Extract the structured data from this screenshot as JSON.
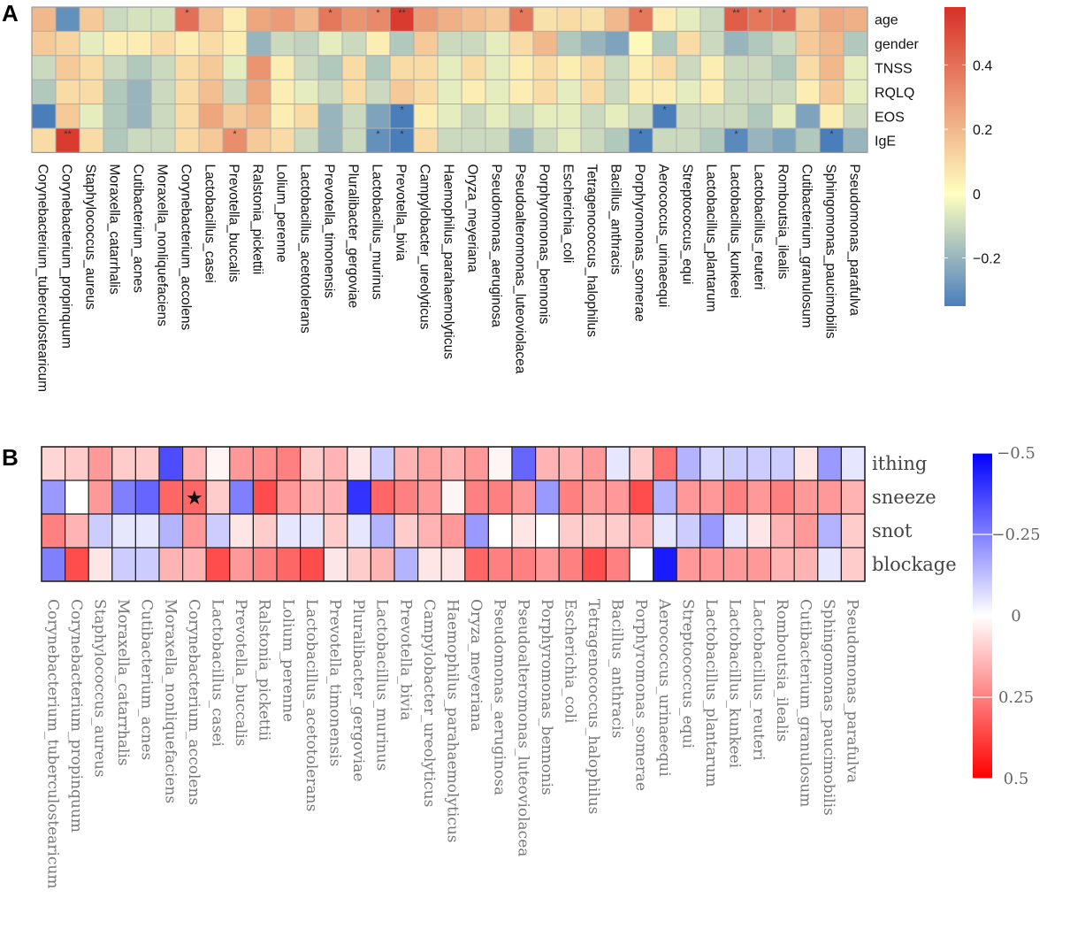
{
  "panel_labels": {
    "a": "A",
    "b": "B"
  },
  "chart_data": [
    {
      "type": "heatmap",
      "panel": "A",
      "title": "",
      "rows": [
        "age",
        "gender",
        "TNSS",
        "RQLQ",
        "EOS",
        "IgE"
      ],
      "columns": [
        "Corynebacterium_tuberculostearicum",
        "Corynebacterium_propinquum",
        "Staphylococcus_aureus",
        "Moraxella_catarrhalis",
        "Cutibacterium_acnes",
        "Moraxella_nonliquefaciens",
        "Corynebacterium_accolens",
        "Lactobacillus_casei",
        "Prevotella_buccalis",
        "Ralstonia_pickettii",
        "Lolium_perenne",
        "Lactobacillus_acetotolerans",
        "Prevotella_timonensis",
        "Pluralibacter_gergoviae",
        "Lactobacillus_murinus",
        "Prevotella_bivia",
        "Campylobacter_ureolyticus",
        "Haemophilus_parahaemolyticus",
        "Oryza_meyeriana",
        "Pseudomonas_aeruginosa",
        "Pseudoalteromonas_luteoviolacea",
        "Porphyromonas_bennonis",
        "Escherichia_coli",
        "Tetragenococcus_halophilus",
        "Bacillus_anthracis",
        "Porphyromonas_somerae",
        "Aerococcus_urinaeequi",
        "Streptococcus_equi",
        "Lactobacillus_plantarum",
        "Lactobacillus_kunkeei",
        "Lactobacillus_reuteri",
        "Romboutsia_ilealis",
        "Cutibacterium_granulosum",
        "Sphingomonas_paucimobilis",
        "Pseudomonas_parafulva"
      ],
      "values": [
        [
          0.2,
          -0.3,
          0.15,
          -0.1,
          -0.08,
          -0.08,
          0.4,
          0.18,
          0.05,
          0.25,
          0.28,
          0.2,
          0.38,
          0.3,
          0.33,
          0.55,
          0.28,
          0.22,
          0.18,
          0.15,
          0.38,
          0.08,
          0.1,
          0.08,
          0.2,
          0.38,
          0.05,
          -0.05,
          -0.1,
          0.45,
          0.38,
          0.4,
          0.15,
          0.24,
          0.22
        ],
        [
          0.15,
          0.12,
          -0.05,
          0.05,
          0.05,
          0.1,
          0.05,
          0.1,
          0.05,
          -0.2,
          -0.1,
          -0.12,
          -0.05,
          -0.1,
          0.05,
          -0.15,
          0.15,
          -0.1,
          -0.1,
          -0.05,
          0.1,
          0.2,
          -0.15,
          -0.2,
          -0.25,
          0.02,
          -0.15,
          0.1,
          -0.1,
          -0.2,
          -0.15,
          -0.1,
          0.15,
          0.2,
          -0.15
        ],
        [
          -0.1,
          0.15,
          0.1,
          -0.1,
          -0.15,
          -0.1,
          0.1,
          0.15,
          -0.05,
          0.3,
          0.05,
          -0.1,
          -0.15,
          0.1,
          -0.15,
          0.1,
          0.1,
          -0.05,
          0.1,
          -0.05,
          0.05,
          0.1,
          0.05,
          0.1,
          -0.1,
          0.05,
          0.1,
          -0.1,
          0.05,
          -0.1,
          -0.1,
          -0.15,
          0.1,
          0.2,
          -0.05
        ],
        [
          -0.15,
          0.1,
          0.1,
          -0.15,
          -0.2,
          -0.1,
          0.1,
          0.18,
          -0.1,
          0.25,
          0.05,
          -0.05,
          -0.1,
          0.1,
          -0.1,
          0.15,
          0.1,
          -0.05,
          0.05,
          -0.05,
          0.05,
          0.1,
          -0.05,
          0.1,
          -0.1,
          0.05,
          0.05,
          -0.05,
          0.05,
          -0.1,
          -0.1,
          -0.1,
          0.05,
          0.15,
          -0.05
        ],
        [
          -0.35,
          0.15,
          -0.05,
          -0.15,
          -0.2,
          -0.1,
          0.1,
          0.25,
          0.15,
          0.2,
          0.05,
          0.1,
          -0.2,
          -0.1,
          -0.25,
          -0.38,
          0.05,
          -0.05,
          -0.1,
          -0.05,
          -0.1,
          -0.05,
          -0.05,
          -0.1,
          -0.05,
          -0.1,
          -0.38,
          -0.1,
          -0.1,
          -0.1,
          -0.15,
          -0.05,
          -0.25,
          0.05,
          -0.1
        ],
        [
          0.1,
          0.55,
          0.1,
          -0.15,
          -0.1,
          -0.1,
          0.1,
          0.15,
          0.32,
          0.15,
          0.1,
          -0.1,
          -0.2,
          -0.1,
          -0.3,
          -0.35,
          0.1,
          -0.1,
          -0.1,
          -0.1,
          -0.2,
          -0.1,
          -0.05,
          -0.1,
          -0.15,
          -0.35,
          -0.1,
          -0.1,
          -0.15,
          -0.32,
          -0.2,
          -0.25,
          -0.15,
          -0.35,
          -0.2
        ]
      ],
      "significance": [
        [
          "",
          "",
          "",
          "",
          "",
          "",
          "*",
          "",
          "",
          "",
          "",
          "",
          "*",
          "",
          "*",
          "**",
          "",
          "",
          "",
          "",
          "*",
          "",
          "",
          "",
          "",
          "*",
          "",
          "",
          "",
          "**",
          "*",
          "*",
          "",
          "",
          ""
        ],
        [
          "",
          "",
          "",
          "",
          "",
          "",
          "",
          "",
          "",
          "",
          "",
          "",
          "",
          "",
          "",
          "",
          "",
          "",
          "",
          "",
          "",
          "",
          "",
          "",
          "",
          "",
          "",
          "",
          "",
          "",
          "",
          "",
          "",
          "",
          ""
        ],
        [
          "",
          "",
          "",
          "",
          "",
          "",
          "",
          "",
          "",
          "",
          "",
          "",
          "",
          "",
          "",
          "",
          "",
          "",
          "",
          "",
          "",
          "",
          "",
          "",
          "",
          "",
          "",
          "",
          "",
          "",
          "",
          "",
          "",
          "",
          ""
        ],
        [
          "",
          "",
          "",
          "",
          "",
          "",
          "",
          "",
          "",
          "",
          "",
          "",
          "",
          "",
          "",
          "",
          "",
          "",
          "",
          "",
          "",
          "",
          "",
          "",
          "",
          "",
          "",
          "",
          "",
          "",
          "",
          "",
          "",
          "",
          ""
        ],
        [
          "",
          "",
          "",
          "",
          "",
          "",
          "",
          "",
          "",
          "",
          "",
          "",
          "",
          "",
          "",
          "*",
          "",
          "",
          "",
          "",
          "",
          "",
          "",
          "",
          "",
          "",
          "*",
          "",
          "",
          "",
          "",
          "",
          "",
          "",
          ""
        ],
        [
          "",
          "**",
          "",
          "",
          "",
          "",
          "",
          "",
          "*",
          "",
          "",
          "",
          "",
          "",
          "*",
          "*",
          "",
          "",
          "",
          "",
          "",
          "",
          "",
          "",
          "",
          "*",
          "",
          "",
          "",
          "*",
          "",
          "",
          "",
          "*",
          ""
        ]
      ],
      "colorbar": {
        "ticks": [
          0.4,
          0.2,
          0,
          -0.2
        ],
        "tick_labels": [
          "0.4",
          "0.2",
          "0",
          "−0.2"
        ],
        "range": [
          -0.35,
          0.58
        ]
      },
      "colors": {
        "low": "#4a7ebb",
        "mid": "#ffffbf",
        "high": "#d73027"
      }
    },
    {
      "type": "heatmap",
      "panel": "B",
      "title": "",
      "rows": [
        "ithing",
        "sneeze",
        "snot",
        "blockage"
      ],
      "columns": [
        "Corynebacterium_tuberculostearicum",
        "Corynebacterium_propinquum",
        "Staphylococcus_aureus",
        "Moraxella_catarrhalis",
        "Cutibacterium_acnes",
        "Moraxella_nonliquefaciens",
        "Corynebacterium_accolens",
        "Lactobacillus_casei",
        "Prevotella_buccalis",
        "Ralstonia_pickettii",
        "Lolium_perenne",
        "Lactobacillus_acetotolerans",
        "Prevotella_timonensis",
        "Pluralibacter_gergoviae",
        "Lactobacillus_murinus",
        "Prevotella_bivia",
        "Campylobacter_ureolyticus",
        "Haemophilus_parahaemolyticus",
        "Oryza_meyeriana",
        "Pseudomonas_aeruginosa",
        "Pseudoalteromonas_luteoviolacea",
        "Porphyromonas_bennonis",
        "Escherichia_coli",
        "Tetragenococcus_halophilus",
        "Bacillus_anthracis",
        "Porphyromonas_somerae",
        "Aerococcus_urinaeequi",
        "Streptococcus_equi",
        "Lactobacillus_plantarum",
        "Lactobacillus_kunkeei",
        "Lactobacillus_reuteri",
        "Romboutsia_ilealis",
        "Cutibacterium_granulosum",
        "Sphingomonas_paucimobilis",
        "Pseudomonas_parafulva"
      ],
      "values": [
        [
          0.08,
          0.1,
          0.2,
          0.1,
          0.1,
          -0.35,
          0.15,
          0.02,
          0.2,
          0.22,
          0.25,
          0.1,
          0.15,
          0.05,
          -0.1,
          0.15,
          0.18,
          0.15,
          0.2,
          0.02,
          -0.3,
          0.15,
          0.15,
          0.2,
          -0.05,
          0.1,
          0.28,
          -0.15,
          -0.08,
          -0.1,
          -0.1,
          -0.1,
          0.05,
          -0.2,
          -0.05
        ],
        [
          -0.2,
          0.0,
          0.2,
          -0.25,
          -0.3,
          0.3,
          0.3,
          0.1,
          -0.25,
          0.35,
          0.2,
          0.15,
          0.15,
          -0.4,
          0.3,
          0.25,
          0.2,
          0.02,
          0.25,
          0.25,
          0.2,
          -0.2,
          0.25,
          0.2,
          0.2,
          0.35,
          -0.15,
          0.2,
          0.2,
          0.25,
          0.2,
          0.25,
          0.2,
          0.2,
          0.15
        ],
        [
          0.25,
          0.15,
          -0.1,
          -0.05,
          -0.05,
          -0.15,
          0.2,
          -0.1,
          0.05,
          0.1,
          -0.05,
          -0.05,
          0.1,
          -0.05,
          -0.15,
          0.1,
          0.15,
          0.2,
          -0.2,
          0.0,
          0.05,
          0.0,
          0.1,
          0.1,
          0.1,
          0.15,
          -0.05,
          -0.1,
          -0.2,
          -0.05,
          0.05,
          0.15,
          0.2,
          -0.15,
          0.1
        ],
        [
          -0.25,
          0.35,
          0.05,
          -0.1,
          -0.1,
          0.15,
          0.15,
          0.35,
          0.2,
          0.25,
          0.3,
          0.35,
          0.05,
          0.1,
          0.15,
          -0.15,
          0.05,
          0.05,
          0.3,
          0.25,
          0.25,
          0.2,
          0.25,
          0.35,
          0.25,
          0.0,
          -0.45,
          0.2,
          0.2,
          0.2,
          0.2,
          0.15,
          0.15,
          -0.05,
          0.1
        ]
      ],
      "markers": [
        [
          "",
          "",
          "",
          "",
          "",
          "",
          "",
          "",
          "",
          "",
          "",
          "",
          "",
          "",
          "",
          "",
          "",
          "",
          "",
          "",
          "",
          "",
          "",
          "",
          "",
          "",
          "",
          "",
          "",
          "",
          "",
          "",
          "",
          "",
          ""
        ],
        [
          "",
          "",
          "",
          "",
          "",
          "",
          "★",
          "",
          "",
          "",
          "",
          "",
          "",
          "",
          "",
          "",
          "",
          "",
          "",
          "",
          "",
          "",
          "",
          "",
          "",
          "",
          "",
          "",
          "",
          "",
          "",
          "",
          "",
          "",
          ""
        ],
        [
          "",
          "",
          "",
          "",
          "",
          "",
          "",
          "",
          "",
          "",
          "",
          "",
          "",
          "",
          "",
          "",
          "",
          "",
          "",
          "",
          "",
          "",
          "",
          "",
          "",
          "",
          "",
          "",
          "",
          "",
          "",
          "",
          "",
          "",
          ""
        ],
        [
          "",
          "",
          "",
          "",
          "",
          "",
          "",
          "",
          "",
          "",
          "",
          "",
          "",
          "",
          "",
          "",
          "",
          "",
          "",
          "",
          "",
          "",
          "",
          "",
          "",
          "",
          "",
          "",
          "",
          "",
          "",
          "",
          "",
          "",
          ""
        ]
      ],
      "colorbar": {
        "ticks": [
          -0.5,
          -0.25,
          0,
          0.25,
          0.5
        ],
        "tick_labels": [
          "−0.5",
          "−0.25",
          "0",
          "0.25",
          "0.5"
        ],
        "range": [
          -0.5,
          0.5
        ]
      },
      "colors": {
        "low": "#0000ff",
        "mid": "#ffffff",
        "high": "#ff0000"
      }
    }
  ]
}
